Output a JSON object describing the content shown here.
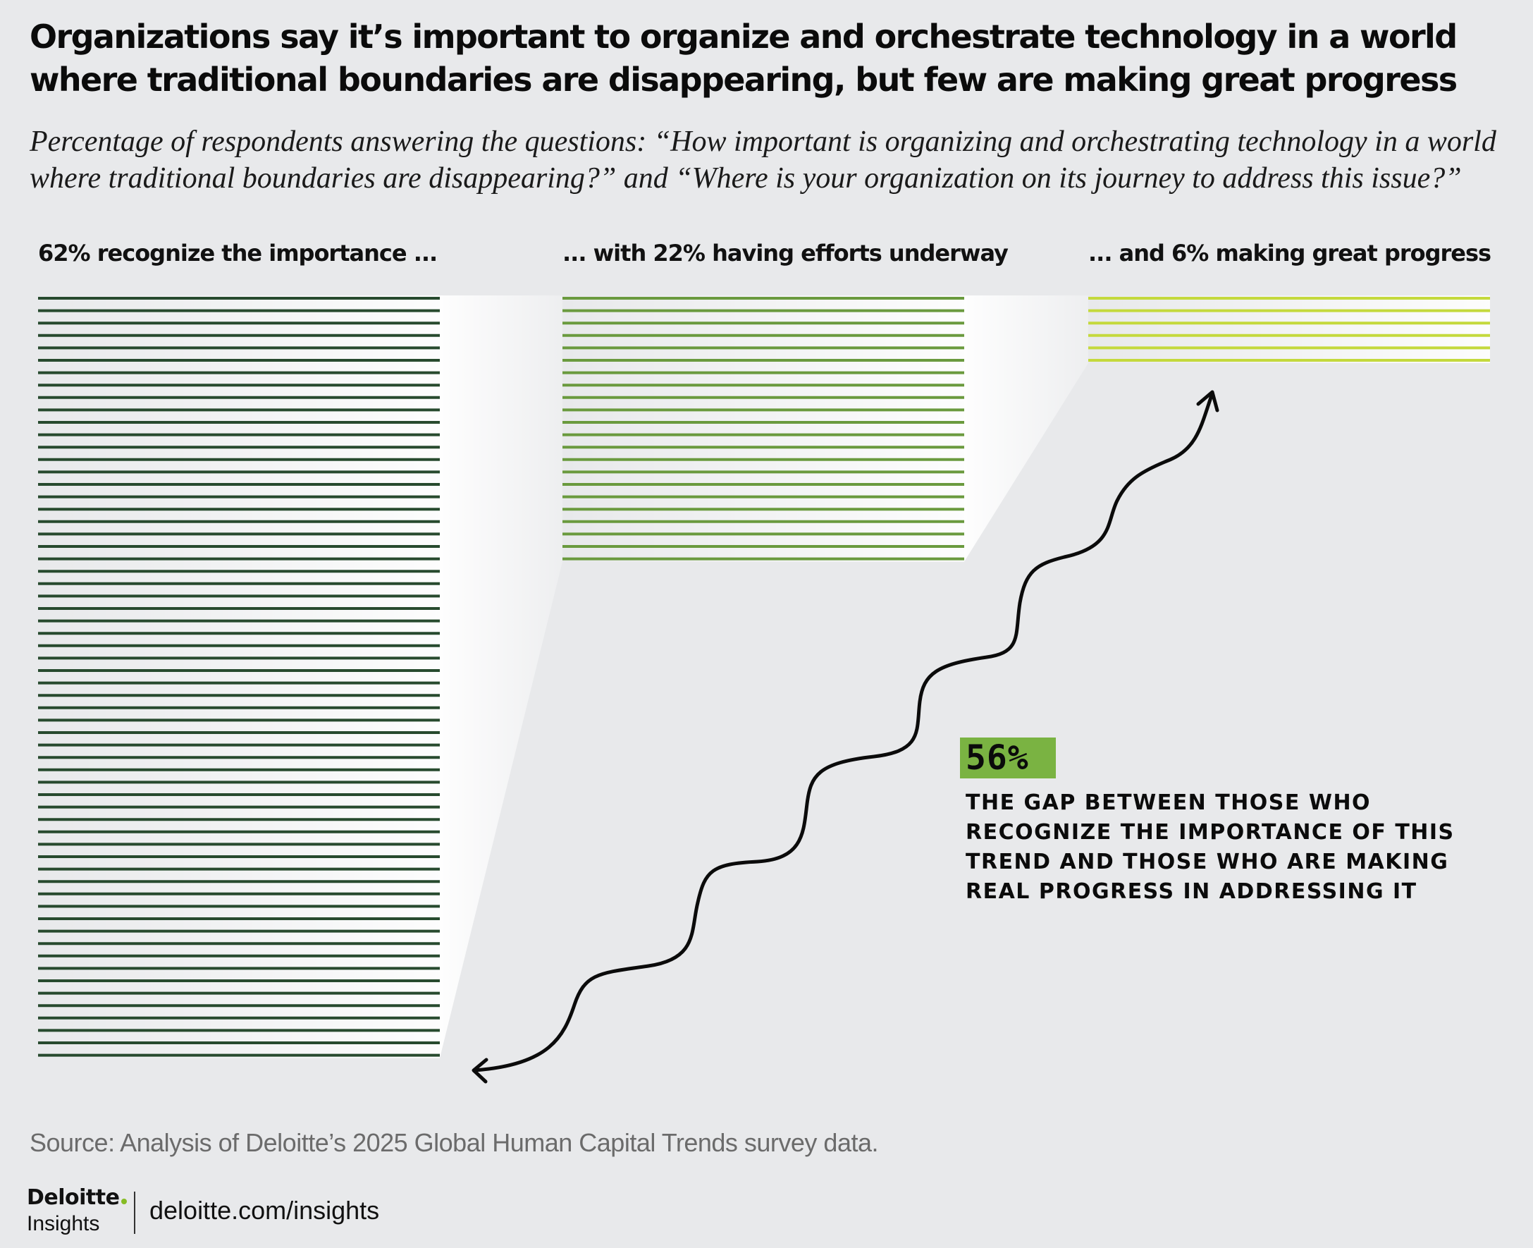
{
  "header": {
    "title": "Organizations say it’s important to organize and orchestrate technology in a world where traditional boundaries are disappearing, but few are making great progress",
    "subtitle": "Percentage of respondents answering the questions: “How important is organizing and orchestrating technology in a world where traditional boundaries are disappearing?” and “Where is your organization on its journey to address this issue?”"
  },
  "chart_data": {
    "type": "bar",
    "orientation": "stacked horizontal lines, one line per percentage point",
    "categories": [
      "62% recognize the importance ...",
      "... with 22% having efforts underway",
      "... and 6% making great progress"
    ],
    "values": [
      62,
      22,
      6
    ],
    "unit": "%",
    "colors": [
      "#274a2e",
      "#6a9a3e",
      "#c4d93c"
    ],
    "annotation": {
      "value": "56%",
      "text": "The gap between those who recognize the importance of this trend and those who are making real progress in addressing it",
      "highlight_color": "#7ab342"
    }
  },
  "footer": {
    "source": "Source: Analysis of Deloitte’s 2025 Global Human Capital Trends survey data.",
    "brand_name": "Deloitte",
    "brand_sub": "Insights",
    "site": "deloitte.com/insights"
  }
}
